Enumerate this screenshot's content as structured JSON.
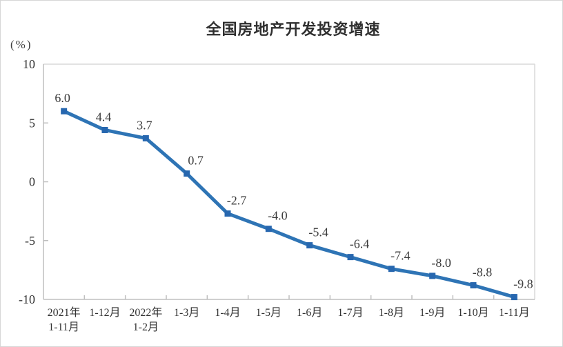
{
  "chart_data": {
    "type": "line",
    "title": "全国房地产开发投资增速",
    "unit_label": "(%)",
    "categories": [
      "2021年\n1-11月",
      "1-12月",
      "2022年\n1-2月",
      "1-3月",
      "1-4月",
      "1-5月",
      "1-6月",
      "1-7月",
      "1-8月",
      "1-9月",
      "1-10月",
      "1-11月"
    ],
    "values": [
      6.0,
      4.4,
      3.7,
      0.7,
      -2.7,
      -4.0,
      -5.4,
      -6.4,
      -7.4,
      -8.0,
      -8.8,
      -9.8
    ],
    "data_labels": [
      "6.0",
      "4.4",
      "3.7",
      "0.7",
      "-2.7",
      "-4.0",
      "-5.4",
      "-6.4",
      "-7.4",
      "-8.0",
      "-8.8",
      "-9.8"
    ],
    "ylim": [
      -10,
      10
    ],
    "y_ticks": [
      10,
      5,
      0,
      -5,
      -10
    ],
    "grid": false,
    "legend": "none",
    "line_color": "#2E74B5",
    "marker_color": "#2767AF",
    "axis_color": "#BFBFBF",
    "frame_color": "#D9D9D9",
    "tick_label_color": "#333333",
    "data_label_color": "#3b3b3b"
  }
}
